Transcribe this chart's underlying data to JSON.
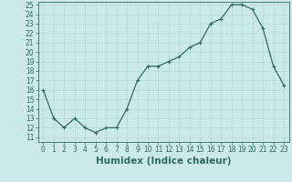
{
  "x": [
    0,
    1,
    2,
    3,
    4,
    5,
    6,
    7,
    8,
    9,
    10,
    11,
    12,
    13,
    14,
    15,
    16,
    17,
    18,
    19,
    20,
    21,
    22,
    23
  ],
  "y": [
    16.0,
    13.0,
    12.0,
    13.0,
    12.0,
    11.5,
    12.0,
    12.0,
    14.0,
    17.0,
    18.5,
    18.5,
    19.0,
    19.5,
    20.5,
    21.0,
    23.0,
    23.5,
    25.0,
    25.0,
    24.5,
    22.5,
    18.5,
    16.5
  ],
  "line_color": "#2e6b5e",
  "marker": "+",
  "marker_size": 3,
  "marker_linewidth": 0.8,
  "line_width": 0.9,
  "bg_color": "#cce9e9",
  "grid_color": "#b0d5d5",
  "xlabel": "Humidex (Indice chaleur)",
  "xlim": [
    -0.5,
    23.5
  ],
  "ylim": [
    10.5,
    25.3
  ],
  "xtick_labels": [
    "0",
    "1",
    "2",
    "3",
    "4",
    "5",
    "6",
    "7",
    "8",
    "9",
    "10",
    "11",
    "12",
    "13",
    "14",
    "15",
    "16",
    "17",
    "18",
    "19",
    "20",
    "21",
    "22",
    "23"
  ],
  "ytick_values": [
    11,
    12,
    13,
    14,
    15,
    16,
    17,
    18,
    19,
    20,
    21,
    22,
    23,
    24,
    25
  ],
  "font_color": "#2e6b5e",
  "tick_fontsize": 5.5,
  "label_fontsize": 7.5
}
